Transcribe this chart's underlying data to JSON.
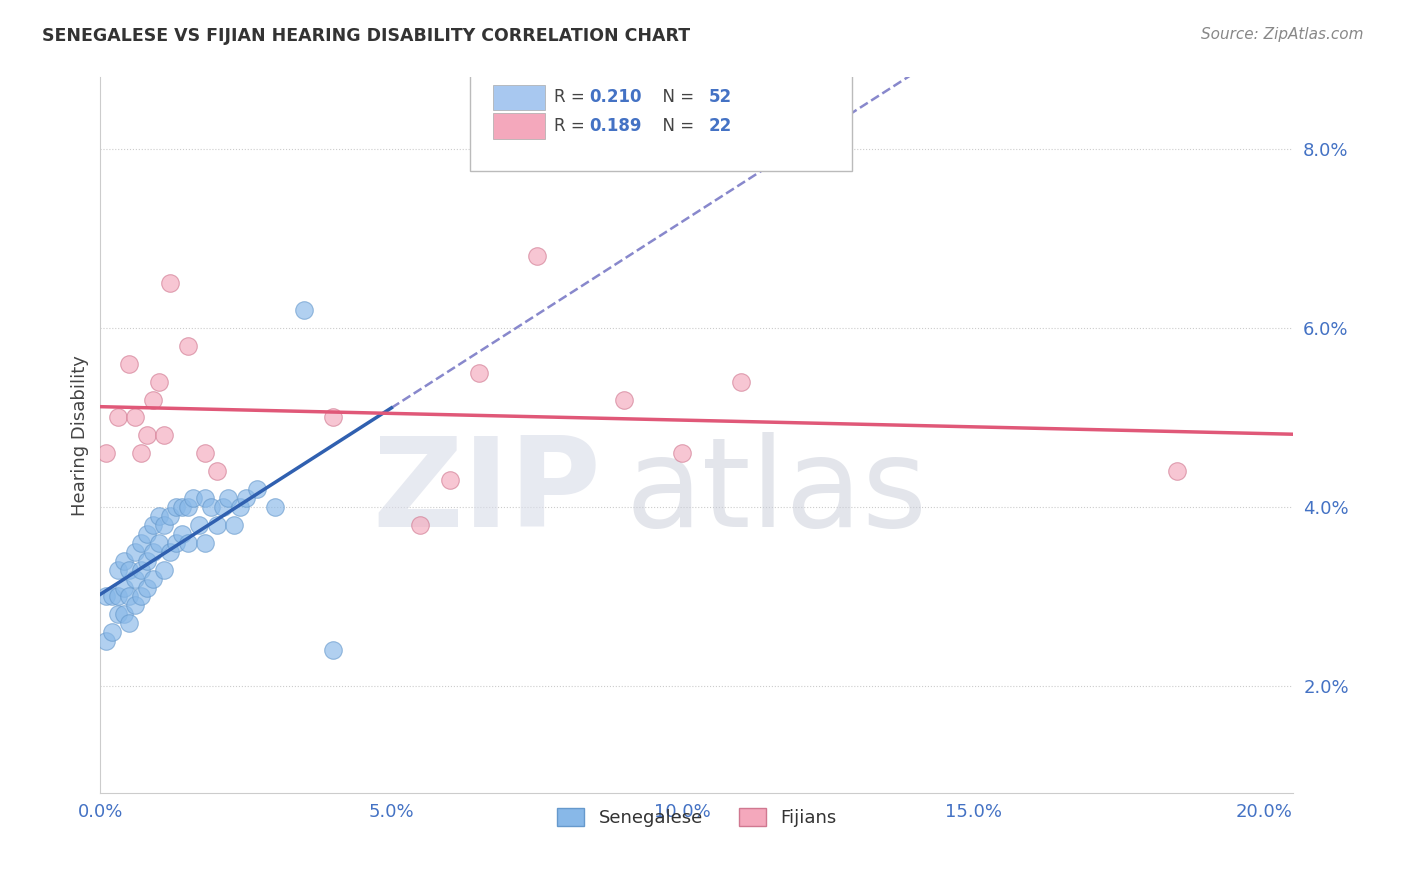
{
  "title": "SENEGALESE VS FIJIAN HEARING DISABILITY CORRELATION CHART",
  "source": "Source: ZipAtlas.com",
  "ylabel": "Hearing Disability",
  "xlim": [
    0.0,
    0.205
  ],
  "ylim": [
    0.008,
    0.088
  ],
  "xticks": [
    0.0,
    0.05,
    0.1,
    0.15,
    0.2
  ],
  "yticks": [
    0.02,
    0.04,
    0.06,
    0.08
  ],
  "ytick_labels": [
    "2.0%",
    "4.0%",
    "6.0%",
    "8.0%"
  ],
  "xtick_labels": [
    "0.0%",
    "5.0%",
    "10.0%",
    "15.0%",
    "20.0%"
  ],
  "legend_entries": [
    {
      "r_val": "0.210",
      "n_val": "52",
      "color": "#a8c8f0"
    },
    {
      "r_val": "0.189",
      "n_val": "22",
      "color": "#f4a8bc"
    }
  ],
  "legend_labels_bottom": [
    "Senegalese",
    "Fijians"
  ],
  "blue_color": "#88b8e8",
  "pink_color": "#f4a8bc",
  "blue_trend_color": "#3060b0",
  "blue_dash_color": "#8888cc",
  "pink_trend_color": "#e05878",
  "watermark": "ZIPatlas",
  "senegalese_x": [
    0.001,
    0.001,
    0.002,
    0.002,
    0.003,
    0.003,
    0.003,
    0.004,
    0.004,
    0.004,
    0.005,
    0.005,
    0.005,
    0.006,
    0.006,
    0.006,
    0.007,
    0.007,
    0.007,
    0.008,
    0.008,
    0.008,
    0.009,
    0.009,
    0.009,
    0.01,
    0.01,
    0.011,
    0.011,
    0.012,
    0.012,
    0.013,
    0.013,
    0.014,
    0.014,
    0.015,
    0.015,
    0.016,
    0.017,
    0.018,
    0.018,
    0.019,
    0.02,
    0.021,
    0.022,
    0.023,
    0.024,
    0.025,
    0.027,
    0.03,
    0.035,
    0.04
  ],
  "senegalese_y": [
    0.03,
    0.025,
    0.03,
    0.026,
    0.033,
    0.03,
    0.028,
    0.034,
    0.031,
    0.028,
    0.033,
    0.03,
    0.027,
    0.035,
    0.032,
    0.029,
    0.036,
    0.033,
    0.03,
    0.037,
    0.034,
    0.031,
    0.038,
    0.035,
    0.032,
    0.039,
    0.036,
    0.038,
    0.033,
    0.039,
    0.035,
    0.04,
    0.036,
    0.04,
    0.037,
    0.04,
    0.036,
    0.041,
    0.038,
    0.041,
    0.036,
    0.04,
    0.038,
    0.04,
    0.041,
    0.038,
    0.04,
    0.041,
    0.042,
    0.04,
    0.062,
    0.024
  ],
  "fijian_x": [
    0.001,
    0.003,
    0.005,
    0.006,
    0.007,
    0.008,
    0.009,
    0.01,
    0.011,
    0.012,
    0.015,
    0.018,
    0.02,
    0.04,
    0.055,
    0.06,
    0.065,
    0.075,
    0.09,
    0.1,
    0.11,
    0.185
  ],
  "fijian_y": [
    0.046,
    0.05,
    0.056,
    0.05,
    0.046,
    0.048,
    0.052,
    0.054,
    0.048,
    0.065,
    0.058,
    0.046,
    0.044,
    0.05,
    0.038,
    0.043,
    0.055,
    0.068,
    0.052,
    0.046,
    0.054,
    0.044
  ]
}
